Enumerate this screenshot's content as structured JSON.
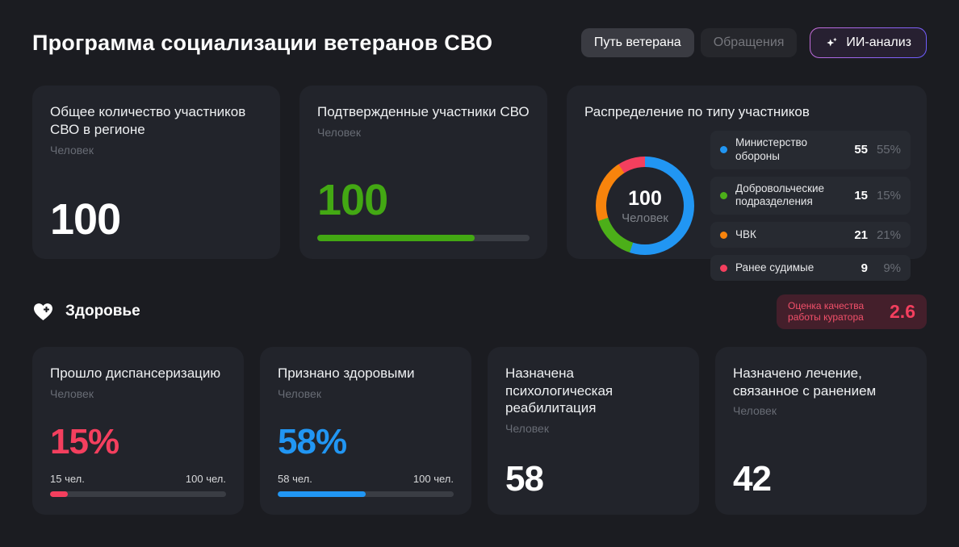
{
  "page": {
    "title": "Программа социализации ветеранов СВО"
  },
  "header": {
    "tabs": [
      {
        "label": "Путь ветерана",
        "active": true
      },
      {
        "label": "Обращения",
        "active": false
      }
    ],
    "ai_button_label": "ИИ-анализ"
  },
  "cards_row1": [
    {
      "title": "Общее количество участников СВО в регионе",
      "unit": "Человек",
      "value": "100"
    },
    {
      "title": "Подтвержденные участники СВО",
      "unit": "Человек",
      "value": "100",
      "bar_percent": 74
    }
  ],
  "distribution": {
    "title": "Распределение по типу участников",
    "center_value": "100",
    "center_unit": "Человек",
    "legend": [
      {
        "label": "Министерство обороны",
        "value": "55",
        "percent": "55%",
        "color": "#2196f3"
      },
      {
        "label": "Добровольческие подразделения",
        "value": "15",
        "percent": "15%",
        "color": "#4caf19"
      },
      {
        "label": "ЧВК",
        "value": "21",
        "percent": "21%",
        "color": "#f8840c"
      },
      {
        "label": "Ранее судимые",
        "value": "9",
        "percent": "9%",
        "color": "#f43f5e"
      }
    ]
  },
  "health": {
    "section_title": "Здоровье",
    "badge_label": "Оценка качества работы куратора",
    "badge_value": "2.6"
  },
  "cards_row2": [
    {
      "title": "Прошло диспансеризацию",
      "unit": "Человек",
      "value": "15%",
      "left_label": "15 чел.",
      "right_label": "100 чел.",
      "bar_percent": 10,
      "color": "#f43f5e"
    },
    {
      "title": "Признано здоровыми",
      "unit": "Человек",
      "value": "58%",
      "left_label": "58 чел.",
      "right_label": "100 чел.",
      "bar_percent": 50,
      "color": "#2196f3"
    },
    {
      "title": "Назначена психологическая реабилитация",
      "unit": "Человек",
      "value": "58"
    },
    {
      "title": "Назначено лечение, связанное с ранением",
      "unit": "Человек",
      "value": "42"
    }
  ],
  "colors": {
    "page_bg": "#1b1c21",
    "card_bg": "#22242b",
    "legend_row_bg": "#272a31",
    "track": "#3a3d44",
    "green": "#43a813",
    "blue": "#2196f3",
    "orange": "#f8840c",
    "red": "#f43f5e",
    "badge_bg": "#441f2b",
    "ai_border_purple": "#6a5cff"
  },
  "chart_data": {
    "type": "pie",
    "title": "Распределение по типу участников",
    "categories": [
      "Министерство обороны",
      "Добровольческие подразделения",
      "ЧВК",
      "Ранее судимые"
    ],
    "values": [
      55,
      15,
      21,
      9
    ],
    "percent_labels": [
      "55%",
      "15%",
      "21%",
      "9%"
    ],
    "colors": [
      "#2196f3",
      "#4caf19",
      "#f8840c",
      "#f43f5e"
    ],
    "center_label": {
      "value": "100",
      "unit": "Человек"
    },
    "legend_position": "right",
    "donut": true
  }
}
